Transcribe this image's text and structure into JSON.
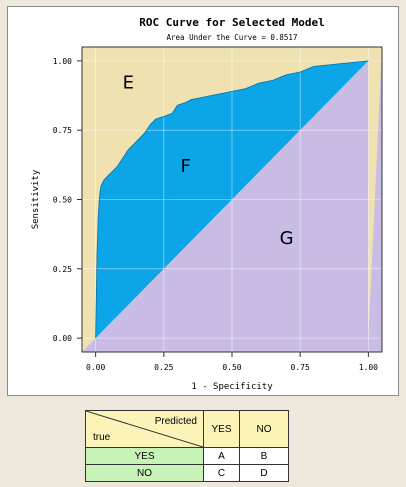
{
  "chart_data": {
    "type": "area",
    "title": "ROC Curve for Selected Model",
    "subtitle": "Area Under the Curve = 0.8517",
    "xlabel": "1 - Specificity",
    "ylabel": "Sensitivity",
    "xlim": [
      -0.05,
      1.05
    ],
    "ylim": [
      -0.05,
      1.05
    ],
    "xticks": [
      "0.00",
      "0.25",
      "0.50",
      "0.75",
      "1.00"
    ],
    "yticks": [
      "0.00",
      "0.25",
      "0.50",
      "0.75",
      "1.00"
    ],
    "xtick_values": [
      0,
      0.25,
      0.5,
      0.75,
      1.0
    ],
    "ytick_values": [
      0,
      0.25,
      0.5,
      0.75,
      1.0
    ],
    "roc_x": [
      0,
      0.005,
      0.01,
      0.015,
      0.02,
      0.03,
      0.05,
      0.08,
      0.1,
      0.12,
      0.15,
      0.18,
      0.2,
      0.22,
      0.25,
      0.28,
      0.3,
      0.33,
      0.35,
      0.4,
      0.45,
      0.5,
      0.55,
      0.6,
      0.65,
      0.7,
      0.75,
      0.8,
      0.85,
      0.9,
      0.95,
      1.0
    ],
    "roc_y": [
      0,
      0.3,
      0.45,
      0.52,
      0.55,
      0.57,
      0.59,
      0.62,
      0.65,
      0.68,
      0.71,
      0.74,
      0.77,
      0.79,
      0.8,
      0.81,
      0.84,
      0.85,
      0.86,
      0.87,
      0.88,
      0.89,
      0.9,
      0.92,
      0.93,
      0.95,
      0.96,
      0.98,
      0.985,
      0.99,
      0.995,
      1.0
    ],
    "regions": [
      {
        "label": "E",
        "x": 0.12,
        "y": 0.9
      },
      {
        "label": "F",
        "x": 0.33,
        "y": 0.6
      },
      {
        "label": "G",
        "x": 0.7,
        "y": 0.34
      }
    ],
    "colors": {
      "above_curve": "#efe2b0",
      "between": "#0ba5e8",
      "below_diagonal": "#c9bde6",
      "plot_border": "#333333"
    }
  },
  "table": {
    "predicted_label": "Predicted",
    "true_label": "true",
    "col_yes": "YES",
    "col_no": "NO",
    "rows": [
      {
        "label": "YES",
        "a": "A",
        "b": "B"
      },
      {
        "label": "NO",
        "a": "C",
        "b": "D"
      }
    ]
  }
}
